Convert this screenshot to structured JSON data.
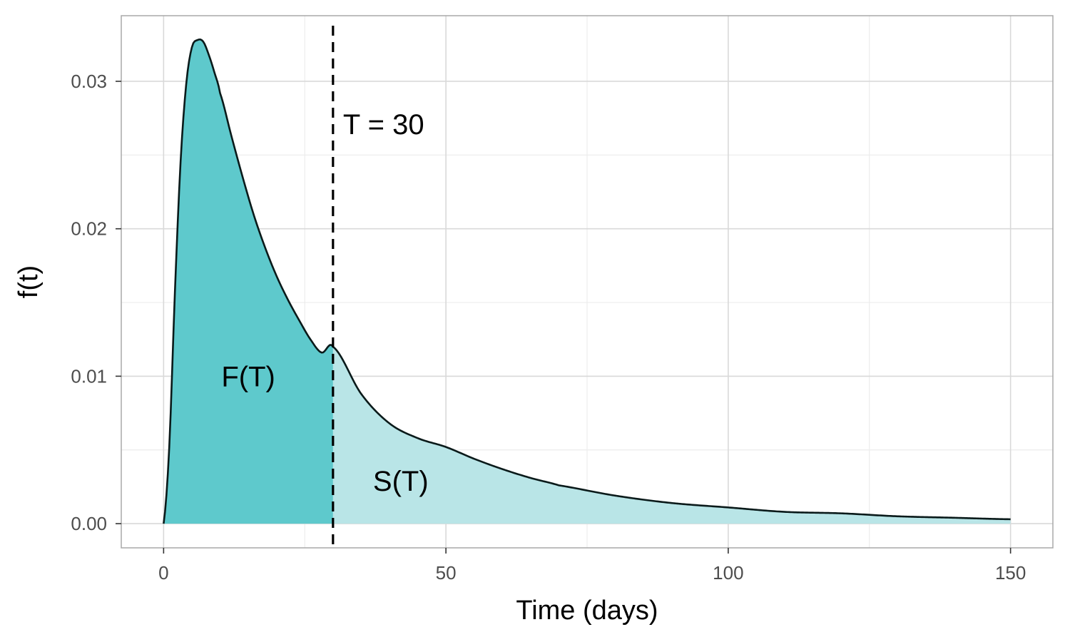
{
  "chart_data": {
    "type": "area",
    "xlabel": "Time (days)",
    "ylabel": "f(t)",
    "xlim": [
      -7.5,
      157.5
    ],
    "ylim": [
      -0.00164,
      0.03445
    ],
    "x_ticks": [
      0,
      50,
      100,
      150
    ],
    "x_tick_labels": [
      "0",
      "50",
      "100",
      "150"
    ],
    "y_ticks": [
      0.0,
      0.01,
      0.02,
      0.03
    ],
    "y_tick_labels": [
      "0.00",
      "0.01",
      "0.02",
      "0.03"
    ],
    "x_minor_ticks": [
      25,
      75,
      125
    ],
    "y_minor_ticks": [
      0.005,
      0.015,
      0.025
    ],
    "grid": true,
    "cutoff_x": 30,
    "series": [
      {
        "x": [
          0,
          1,
          2,
          3,
          4,
          5,
          6,
          7,
          8,
          9,
          10,
          12,
          14,
          16,
          18,
          20,
          22,
          24,
          26,
          28,
          30,
          35,
          40,
          45,
          50,
          55,
          60,
          65,
          70,
          80,
          90,
          100,
          110,
          120,
          130,
          140,
          150
        ],
        "y": [
          0.0,
          0.0052,
          0.0157,
          0.0245,
          0.0298,
          0.0323,
          0.0328,
          0.0327,
          0.0318,
          0.0306,
          0.0292,
          0.0263,
          0.0235,
          0.0209,
          0.0187,
          0.0168,
          0.0152,
          0.0138,
          0.0125,
          0.0116,
          0.012,
          0.0088,
          0.0068,
          0.0058,
          0.0052,
          0.0044,
          0.0037,
          0.0031,
          0.0026,
          0.0019,
          0.0014,
          0.0011,
          0.0008,
          0.0007,
          0.0005,
          0.0004,
          0.0003
        ]
      }
    ],
    "fill_colors": {
      "before": "#5ec9cc",
      "after": "#b9e5e7"
    },
    "line_color": "#0a1a1a",
    "annotations": {
      "cutoff_label": "T = 30",
      "before_label": "F(T)",
      "after_label": "S(T)"
    }
  }
}
